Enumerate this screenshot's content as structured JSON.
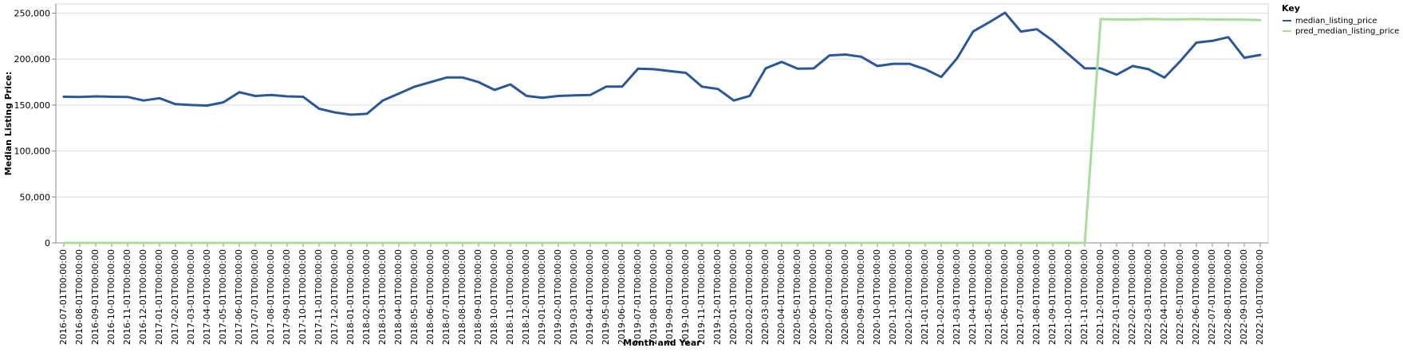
{
  "chart_data": {
    "type": "line",
    "title": "",
    "xlabel": "Month and Year",
    "ylabel": "Median Listing Price:",
    "ylim": [
      0,
      260000
    ],
    "yticks": [
      0,
      50000,
      100000,
      150000,
      200000,
      250000
    ],
    "ytick_labels": [
      "0",
      "50,000",
      "100,000",
      "150,000",
      "200,000",
      "250,000"
    ],
    "grid": true,
    "legend": {
      "title": "Key",
      "placement": "top-right"
    },
    "x": [
      "2016-07-01T00:00:00",
      "2016-08-01T00:00:00",
      "2016-09-01T00:00:00",
      "2016-10-01T00:00:00",
      "2016-11-01T00:00:00",
      "2016-12-01T00:00:00",
      "2017-01-01T00:00:00",
      "2017-02-01T00:00:00",
      "2017-03-01T00:00:00",
      "2017-04-01T00:00:00",
      "2017-05-01T00:00:00",
      "2017-06-01T00:00:00",
      "2017-07-01T00:00:00",
      "2017-08-01T00:00:00",
      "2017-09-01T00:00:00",
      "2017-10-01T00:00:00",
      "2017-11-01T00:00:00",
      "2017-12-01T00:00:00",
      "2018-01-01T00:00:00",
      "2018-02-01T00:00:00",
      "2018-03-01T00:00:00",
      "2018-04-01T00:00:00",
      "2018-05-01T00:00:00",
      "2018-06-01T00:00:00",
      "2018-07-01T00:00:00",
      "2018-08-01T00:00:00",
      "2018-09-01T00:00:00",
      "2018-10-01T00:00:00",
      "2018-11-01T00:00:00",
      "2018-12-01T00:00:00",
      "2019-01-01T00:00:00",
      "2019-02-01T00:00:00",
      "2019-03-01T00:00:00",
      "2019-04-01T00:00:00",
      "2019-05-01T00:00:00",
      "2019-06-01T00:00:00",
      "2019-07-01T00:00:00",
      "2019-08-01T00:00:00",
      "2019-09-01T00:00:00",
      "2019-10-01T00:00:00",
      "2019-11-01T00:00:00",
      "2019-12-01T00:00:00",
      "2020-01-01T00:00:00",
      "2020-02-01T00:00:00",
      "2020-03-01T00:00:00",
      "2020-04-01T00:00:00",
      "2020-05-01T00:00:00",
      "2020-06-01T00:00:00",
      "2020-07-01T00:00:00",
      "2020-08-01T00:00:00",
      "2020-09-01T00:00:00",
      "2020-10-01T00:00:00",
      "2020-11-01T00:00:00",
      "2020-12-01T00:00:00",
      "2021-01-01T00:00:00",
      "2021-02-01T00:00:00",
      "2021-03-01T00:00:00",
      "2021-04-01T00:00:00",
      "2021-05-01T00:00:00",
      "2021-06-01T00:00:00",
      "2021-07-01T00:00:00",
      "2021-08-01T00:00:00",
      "2021-09-01T00:00:00",
      "2021-10-01T00:00:00",
      "2021-11-01T00:00:00",
      "2021-12-01T00:00:00",
      "2022-01-01T00:00:00",
      "2022-02-01T00:00:00",
      "2022-03-01T00:00:00",
      "2022-04-01T00:00:00",
      "2022-05-01T00:00:00",
      "2022-06-01T00:00:00",
      "2022-07-01T00:00:00",
      "2022-08-01T00:00:00",
      "2022-09-01T00:00:00",
      "2022-10-01T00:00:00"
    ],
    "series": [
      {
        "name": "median_listing_price",
        "color": "#2b5797",
        "values": [
          159000,
          158900,
          159500,
          159000,
          158900,
          155000,
          157500,
          151000,
          150000,
          149500,
          153000,
          164000,
          159900,
          160900,
          159500,
          159000,
          146000,
          142000,
          139500,
          140500,
          155000,
          162500,
          170000,
          175000,
          180000,
          180000,
          175000,
          166500,
          172500,
          160000,
          158000,
          159900,
          160500,
          160900,
          170000,
          170000,
          189500,
          189000,
          187000,
          185000,
          170000,
          167500,
          155000,
          160000,
          190000,
          197000,
          189500,
          189900,
          204000,
          205000,
          202500,
          192500,
          194900,
          194900,
          189000,
          180500,
          201000,
          230000,
          240000,
          250500,
          230000,
          232500,
          220000,
          205000,
          190000,
          189900,
          183000,
          192500,
          189000,
          179900,
          198000,
          218000,
          219900,
          223900,
          201500,
          204500
        ]
      },
      {
        "name": "pred_median_listing_price",
        "color": "#a8dc9a",
        "values": [
          0,
          0,
          0,
          0,
          0,
          0,
          0,
          0,
          0,
          0,
          0,
          0,
          0,
          0,
          0,
          0,
          0,
          0,
          0,
          0,
          0,
          0,
          0,
          0,
          0,
          0,
          0,
          0,
          0,
          0,
          0,
          0,
          0,
          0,
          0,
          0,
          0,
          0,
          0,
          0,
          0,
          0,
          0,
          0,
          0,
          0,
          0,
          0,
          0,
          0,
          0,
          0,
          0,
          0,
          0,
          0,
          0,
          0,
          0,
          0,
          0,
          0,
          0,
          0,
          0,
          243500,
          243200,
          243000,
          243600,
          243300,
          243300,
          243500,
          243200,
          243000,
          243000,
          242500
        ]
      }
    ]
  }
}
